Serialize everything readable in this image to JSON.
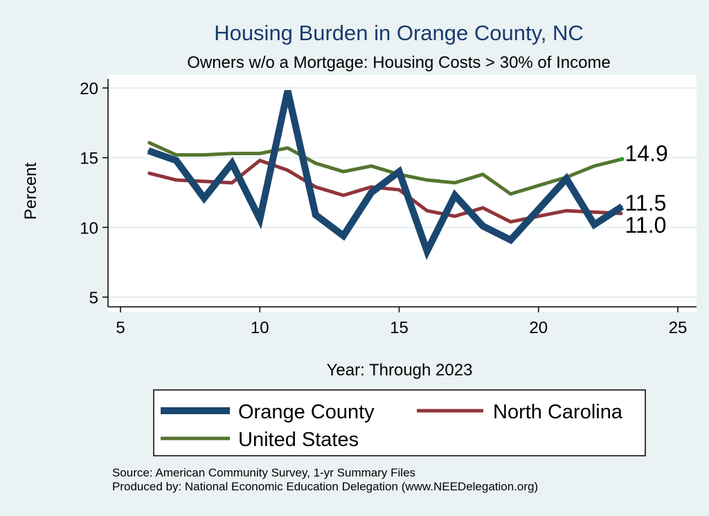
{
  "chart_data": {
    "type": "line",
    "title": "Housing Burden in Orange County, NC",
    "subtitle": "Owners w/o a Mortgage: Housing Costs > 30% of Income",
    "xlabel": "Year: Through 2023",
    "ylabel": "Percent",
    "xlim": [
      5,
      25
    ],
    "ylim": [
      5,
      20
    ],
    "xticks": [
      "5",
      "10",
      "15",
      "20",
      "25"
    ],
    "yticks": [
      "5",
      "10",
      "15",
      "20"
    ],
    "grid": true,
    "series": [
      {
        "name": "Orange County",
        "color": "#1a476f",
        "x": [
          6,
          7,
          8,
          9,
          10,
          11,
          12,
          13,
          14,
          15,
          16,
          17,
          18,
          19,
          20,
          21,
          22,
          23
        ],
        "values": [
          15.5,
          14.8,
          12.1,
          14.6,
          10.6,
          19.8,
          10.9,
          9.4,
          12.5,
          14.0,
          8.3,
          12.3,
          10.1,
          9.1,
          11.3,
          13.5,
          10.2,
          11.5
        ],
        "end_label": "11.5"
      },
      {
        "name": "North Carolina",
        "color": "#90353b",
        "x": [
          6,
          7,
          8,
          9,
          10,
          11,
          12,
          13,
          14,
          15,
          16,
          17,
          18,
          19,
          20,
          21,
          22,
          23
        ],
        "values": [
          13.9,
          13.4,
          13.3,
          13.2,
          14.8,
          14.1,
          12.9,
          12.3,
          12.9,
          12.7,
          11.2,
          10.8,
          11.4,
          10.4,
          10.8,
          11.2,
          11.1,
          11.0
        ],
        "end_label": "11.0"
      },
      {
        "name": "United States",
        "color": "#55752f",
        "x": [
          6,
          7,
          8,
          9,
          10,
          11,
          12,
          13,
          14,
          15,
          16,
          17,
          18,
          19,
          20,
          21,
          22,
          23
        ],
        "values": [
          16.1,
          15.2,
          15.2,
          15.3,
          15.3,
          15.7,
          14.6,
          14.0,
          14.4,
          13.8,
          13.4,
          13.2,
          13.8,
          12.4,
          13.0,
          13.6,
          14.4,
          14.9
        ],
        "end_label": "14.9"
      }
    ],
    "legend": {
      "position": "bottom",
      "entries": [
        "Orange County",
        "North Carolina",
        "United States"
      ]
    },
    "notes": [
      "Source: American Community Survey, 1-yr Summary Files",
      "Produced by: National Economic Education Delegation (www.NEEDelegation.org)"
    ]
  }
}
